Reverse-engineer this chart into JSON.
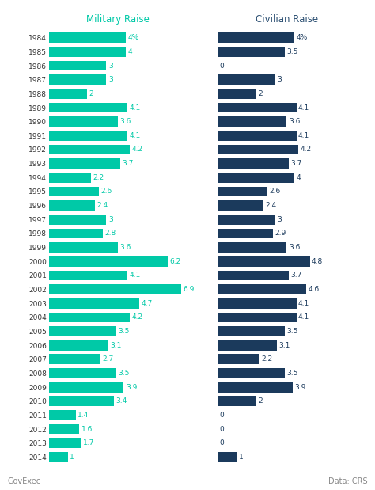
{
  "years": [
    1984,
    1985,
    1986,
    1987,
    1988,
    1989,
    1990,
    1991,
    1992,
    1993,
    1994,
    1995,
    1996,
    1997,
    1998,
    1999,
    2000,
    2001,
    2002,
    2003,
    2004,
    2005,
    2006,
    2007,
    2008,
    2009,
    2010,
    2011,
    2012,
    2013,
    2014
  ],
  "military": [
    4,
    4,
    3,
    3,
    2,
    4.1,
    3.6,
    4.1,
    4.2,
    3.7,
    2.2,
    2.6,
    2.4,
    3,
    2.8,
    3.6,
    6.2,
    4.1,
    6.9,
    4.7,
    4.2,
    3.5,
    3.1,
    2.7,
    3.5,
    3.9,
    3.4,
    1.4,
    1.6,
    1.7,
    1
  ],
  "civilian": [
    4,
    3.5,
    0,
    3,
    2,
    4.1,
    3.6,
    4.1,
    4.2,
    3.7,
    4,
    2.6,
    2.4,
    3,
    2.9,
    3.6,
    4.8,
    3.7,
    4.6,
    4.1,
    4.1,
    3.5,
    3.1,
    2.2,
    3.5,
    3.9,
    2,
    0,
    0,
    0,
    1
  ],
  "military_labels": [
    "4%",
    "4",
    "3",
    "3",
    "2",
    "4.1",
    "3.6",
    "4.1",
    "4.2",
    "3.7",
    "2.2",
    "2.6",
    "2.4",
    "3",
    "2.8",
    "3.6",
    "6.2",
    "4.1",
    "6.9",
    "4.7",
    "4.2",
    "3.5",
    "3.1",
    "2.7",
    "3.5",
    "3.9",
    "3.4",
    "1.4",
    "1.6",
    "1.7",
    "1"
  ],
  "civilian_labels": [
    "4%",
    "3.5",
    "0",
    "3",
    "2",
    "4.1",
    "3.6",
    "4.1",
    "4.2",
    "3.7",
    "4",
    "2.6",
    "2.4",
    "3",
    "2.9",
    "3.6",
    "4.8",
    "3.7",
    "4.6",
    "4.1",
    "4.1",
    "3.5",
    "3.1",
    "2.2",
    "3.5",
    "3.9",
    "2",
    "0",
    "0",
    "0",
    "1"
  ],
  "military_color": "#00C9A7",
  "civilian_color": "#1B3A5C",
  "title_military": "Military Raise",
  "title_civilian": "Civilian Raise",
  "title_military_color": "#00C9A7",
  "title_civilian_color": "#2B4F72",
  "year_color": "#333333",
  "label_military_color": "#00C9A7",
  "label_civilian_color": "#1B3A5C",
  "bg_color": "#FFFFFF",
  "footer_left": "GovExec",
  "footer_right": "Data: CRS",
  "footer_color": "#888888",
  "max_val": 8.0,
  "bar_height": 0.72
}
